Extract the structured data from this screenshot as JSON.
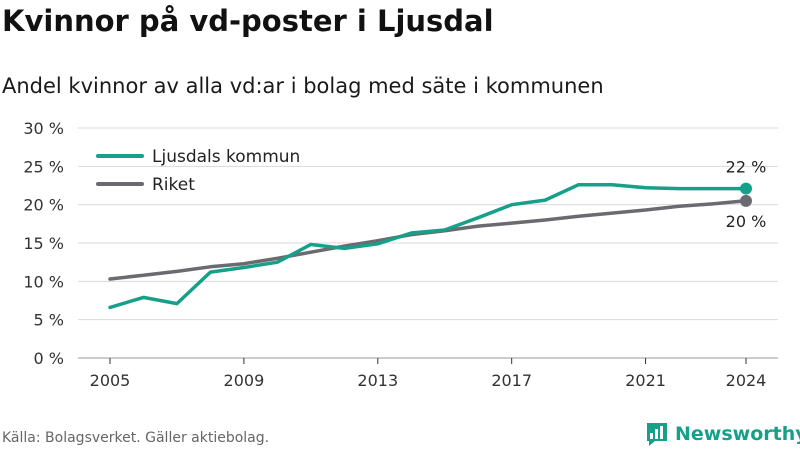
{
  "title": "Kvinnor på vd-poster i Ljusdal",
  "subtitle": "Andel kvinnor av alla vd:ar i bolag med säte i kommunen",
  "source": "Källa: Bolagsverket. Gäller aktiebolag.",
  "brand": "Newsworthy",
  "colors": {
    "accent": "#16a089",
    "national": "#6b6a70",
    "grid": "#d9d9d9",
    "text": "#333333"
  },
  "chart_data": {
    "type": "line",
    "title": "Kvinnor på vd-poster i Ljusdal",
    "subtitle": "Andel kvinnor av alla vd:ar i bolag med säte i kommunen",
    "xlabel": "",
    "ylabel": "",
    "xlim": [
      2005,
      2024
    ],
    "ylim": [
      0,
      30
    ],
    "x_ticks": [
      2005,
      2009,
      2013,
      2017,
      2021,
      2024
    ],
    "y_ticks": [
      0,
      5,
      10,
      15,
      20,
      25,
      30
    ],
    "y_tick_labels": [
      "0 %",
      "5 %",
      "10 %",
      "15 %",
      "20 %",
      "25 %",
      "30 %"
    ],
    "grid": true,
    "legend": "top-left",
    "x": [
      2005,
      2006,
      2007,
      2008,
      2009,
      2010,
      2011,
      2012,
      2013,
      2014,
      2015,
      2016,
      2017,
      2018,
      2019,
      2020,
      2021,
      2022,
      2023,
      2024
    ],
    "series": [
      {
        "name": "Ljusdals kommun",
        "color": "#16a089",
        "values": [
          6.6,
          7.9,
          7.1,
          11.2,
          11.8,
          12.5,
          14.8,
          14.3,
          14.9,
          16.3,
          16.7,
          18.3,
          20.0,
          20.6,
          22.6,
          22.6,
          22.2,
          22.1,
          22.1,
          22.1
        ],
        "end_label": "22 %"
      },
      {
        "name": "Riket",
        "color": "#6b6a70",
        "values": [
          10.3,
          10.8,
          11.3,
          11.9,
          12.3,
          13.0,
          13.8,
          14.6,
          15.3,
          16.1,
          16.6,
          17.2,
          17.6,
          18.0,
          18.5,
          18.9,
          19.3,
          19.8,
          20.1,
          20.5
        ],
        "end_label": "20 %"
      }
    ]
  }
}
